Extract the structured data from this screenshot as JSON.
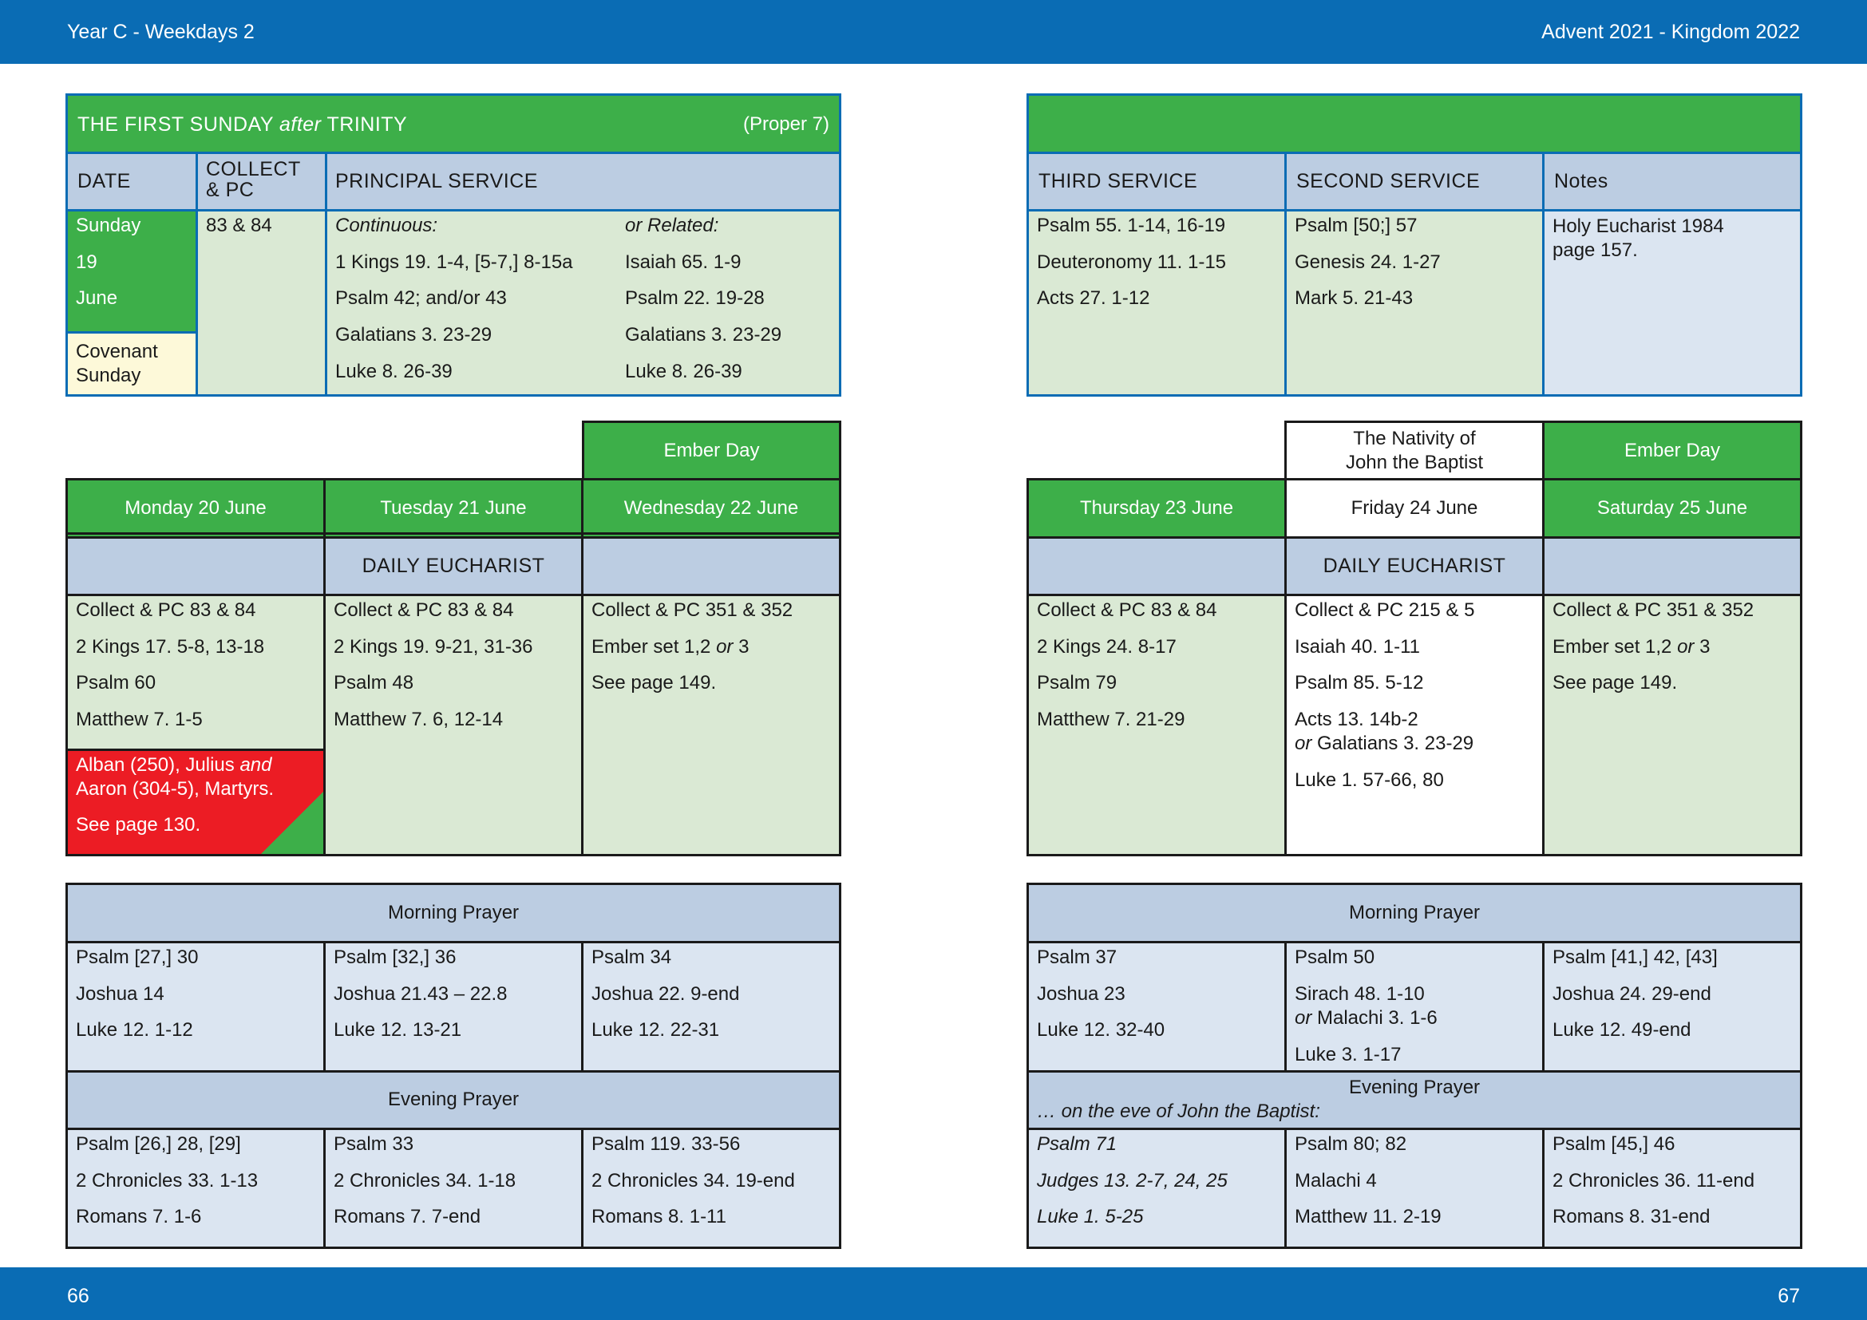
{
  "header": {
    "left": "Year C - Weekdays 2",
    "right": "Advent  2021 - Kingdom 2022"
  },
  "footer": {
    "left_page": "66",
    "right_page": "67"
  },
  "sunday": {
    "title_pre": "THE FIRST SUNDAY ",
    "title_after": "after",
    "title_post": " TRINITY",
    "proper": "(Proper 7)",
    "col_date": "DATE",
    "col_collect_1": "COLLECT",
    "col_collect_2": "& PC",
    "col_principal": "PRINCIPAL SERVICE",
    "date_lines": [
      "Sunday",
      "19",
      "June"
    ],
    "covenant": [
      "Covenant",
      "Sunday"
    ],
    "collect": "83 & 84",
    "continuous_label": "Continuous:",
    "related_label": "or Related:",
    "continuous": [
      "1 Kings 19. 1-4, [5-7,] 8-15a",
      "Psalm 42; and/or 43",
      "Galatians 3. 23-29",
      "Luke 8. 26-39"
    ],
    "related": [
      "Isaiah 65. 1-9",
      "Psalm 22. 19-28",
      "Galatians 3. 23-29",
      "Luke 8. 26-39"
    ],
    "col_third": "THIRD SERVICE",
    "col_second": "SECOND SERVICE",
    "col_notes": "Notes",
    "third": [
      "Psalm 55. 1-14, 16-19",
      "Deuteronomy 11. 1-15",
      "Acts 27. 1-12"
    ],
    "second": [
      "Psalm [50;] 57",
      "Genesis 24. 1-27",
      "Mark 5. 21-43"
    ],
    "notes": [
      "Holy Eucharist 1984",
      "page 157."
    ]
  },
  "left_week": {
    "ember": "Ember Day",
    "days": [
      "Monday 20 June",
      "Tuesday 21 June",
      "Wednesday 22 June"
    ],
    "eucharist_title": "DAILY EUCHARIST",
    "mon": [
      "Collect & PC 83 & 84",
      "2 Kings 17. 5-8, 13-18",
      "Psalm 60",
      "Matthew 7. 1-5"
    ],
    "tue": [
      "Collect & PC 83 & 84",
      "2 Kings 19. 9-21, 31-36",
      "Psalm 48",
      "Matthew 7. 6, 12-14"
    ],
    "wed_1": "Collect & PC 351 & 352",
    "wed_2a": "Ember set 1,2 ",
    "wed_2b": "or",
    "wed_2c": " 3",
    "wed_3": "See page 149.",
    "alban_1a": "Alban (250), Julius ",
    "alban_1b": "and",
    "alban_2": "Aaron (304-5), Martyrs.",
    "alban_3": "See page 130.",
    "mp_title": "Morning Prayer",
    "mp": [
      [
        "Psalm [27,] 30",
        "Joshua 14",
        "Luke 12. 1-12"
      ],
      [
        "Psalm [32,] 36",
        "Joshua 21.43 – 22.8",
        "Luke 12. 13-21"
      ],
      [
        "Psalm 34",
        "Joshua 22. 9-end",
        "Luke 12. 22-31"
      ]
    ],
    "ep_title": "Evening Prayer",
    "ep": [
      [
        "Psalm [26,] 28, [29]",
        "2 Chronicles 33. 1-13",
        "Romans 7. 1-6"
      ],
      [
        "Psalm 33",
        "2 Chronicles 34. 1-18",
        "Romans 7. 7-end"
      ],
      [
        "Psalm 119. 33-56",
        "2 Chronicles 34. 19-end",
        "Romans 8. 1-11"
      ]
    ]
  },
  "right_week": {
    "nativity": [
      "The Nativity of",
      "John the Baptist"
    ],
    "ember": "Ember Day",
    "days": [
      "Thursday 23 June",
      "Friday 24 June",
      "Saturday 25 June"
    ],
    "eucharist_title": "DAILY EUCHARIST",
    "thu": [
      "Collect & PC 83 & 84",
      "2 Kings 24. 8-17",
      "Psalm 79",
      "Matthew 7. 21-29"
    ],
    "fri_1": "Collect & PC 215 & 5",
    "fri_2": "Isaiah 40. 1-11",
    "fri_3": "Psalm 85. 5-12",
    "fri_4": "Acts 13. 14b-2",
    "fri_5a": "or",
    "fri_5b": " Galatians 3. 23-29",
    "fri_6": "Luke 1. 57-66, 80",
    "sat_1": "Collect & PC 351 & 352",
    "sat_2a": "Ember set 1,2 ",
    "sat_2b": "or",
    "sat_2c": " 3",
    "sat_3": "See page 149.",
    "mp_title": "Morning Prayer",
    "mp_thu": [
      "Psalm 37",
      "Joshua 23",
      "Luke 12. 32-40"
    ],
    "mp_fri_1": "Psalm 50",
    "mp_fri_2": "Sirach 48. 1-10",
    "mp_fri_3a": "or",
    "mp_fri_3b": " Malachi 3. 1-6",
    "mp_fri_4": "Luke 3. 1-17",
    "mp_sat": [
      "Psalm [41,] 42, [43]",
      "Joshua 24. 29-end",
      "Luke 12. 49-end"
    ],
    "ep_title": "Evening Prayer",
    "ep_eve": "… on the eve of John the Baptist:",
    "ep_thu": [
      "Psalm 71",
      "Judges 13. 2-7, 24, 25",
      "Luke 1. 5-25"
    ],
    "ep_fri": [
      "Psalm 80; 82",
      "Malachi 4",
      "Matthew 11. 2-19"
    ],
    "ep_sat": [
      "Psalm [45,] 46",
      "2 Chronicles 36. 11-end",
      "Romans 8. 31-end"
    ]
  },
  "colors": {
    "blue": "#0a6cb4",
    "green": "#3daf49",
    "light_green": "#dae9d4",
    "light_blue": "#dbe5f1",
    "header_blue": "#bccde2",
    "red": "#ec1c24",
    "cream": "#fdf9d9"
  }
}
